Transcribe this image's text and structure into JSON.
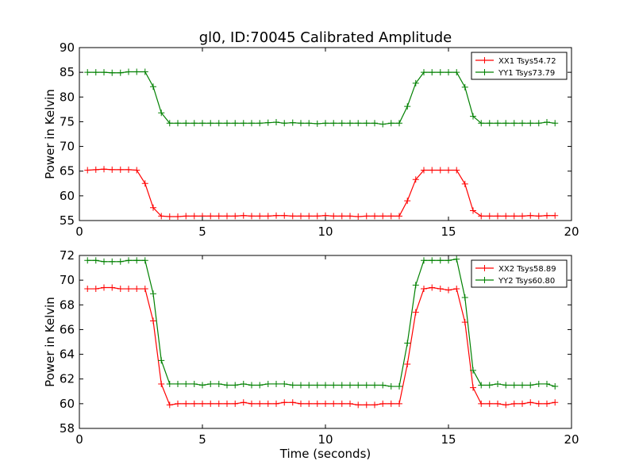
{
  "figure_title": "gl0, ID:70045 Calibrated Amplitude",
  "chart_data": [
    {
      "type": "line",
      "title": "gl0, ID:70045 Calibrated Amplitude",
      "xlabel": "",
      "ylabel": "Power in Kelvin",
      "xlim": [
        0,
        20
      ],
      "ylim": [
        55,
        90
      ],
      "xticks": [
        0,
        5,
        10,
        15,
        20
      ],
      "yticks": [
        55,
        60,
        65,
        70,
        75,
        80,
        85,
        90
      ],
      "grid": false,
      "legend_position": "top-right",
      "x": [
        0.33,
        0.67,
        1.0,
        1.33,
        1.67,
        2.0,
        2.33,
        2.67,
        3.0,
        3.33,
        3.67,
        4.0,
        4.33,
        4.67,
        5.0,
        5.33,
        5.67,
        6.0,
        6.33,
        6.67,
        7.0,
        7.33,
        7.67,
        8.0,
        8.33,
        8.67,
        9.0,
        9.33,
        9.67,
        10.0,
        10.33,
        10.67,
        11.0,
        11.33,
        11.67,
        12.0,
        12.33,
        12.67,
        13.0,
        13.33,
        13.67,
        14.0,
        14.33,
        14.67,
        15.0,
        15.33,
        15.67,
        16.0,
        16.33,
        16.67,
        17.0,
        17.33,
        17.67,
        18.0,
        18.33,
        18.67,
        19.0,
        19.33
      ],
      "series": [
        {
          "name": "XX1 Tsys54.72",
          "color": "#ff0000",
          "values": [
            65.2,
            65.3,
            65.4,
            65.3,
            65.3,
            65.3,
            65.2,
            62.5,
            57.6,
            55.9,
            55.8,
            55.8,
            55.9,
            55.9,
            55.9,
            55.9,
            55.9,
            55.9,
            55.9,
            56.0,
            55.9,
            55.9,
            55.9,
            56.0,
            56.0,
            55.9,
            55.9,
            55.9,
            55.9,
            56.0,
            55.9,
            55.9,
            55.9,
            55.8,
            55.9,
            55.9,
            55.9,
            55.9,
            55.9,
            59.0,
            63.3,
            65.2,
            65.2,
            65.2,
            65.2,
            65.2,
            62.4,
            57.0,
            55.9,
            55.9,
            55.9,
            55.9,
            55.9,
            55.9,
            56.0,
            55.9,
            56.0,
            56.0
          ]
        },
        {
          "name": "YY1 Tsys73.79",
          "color": "#008000",
          "values": [
            85.0,
            85.0,
            85.0,
            84.9,
            84.9,
            85.1,
            85.1,
            85.1,
            82.1,
            76.8,
            74.7,
            74.7,
            74.7,
            74.7,
            74.7,
            74.7,
            74.7,
            74.7,
            74.7,
            74.7,
            74.7,
            74.7,
            74.8,
            74.9,
            74.7,
            74.8,
            74.7,
            74.7,
            74.6,
            74.7,
            74.7,
            74.7,
            74.7,
            74.7,
            74.7,
            74.7,
            74.5,
            74.7,
            74.7,
            78.1,
            82.8,
            85.0,
            85.0,
            85.0,
            85.0,
            85.0,
            82.0,
            76.1,
            74.7,
            74.7,
            74.7,
            74.7,
            74.7,
            74.7,
            74.7,
            74.7,
            74.9,
            74.7
          ]
        }
      ]
    },
    {
      "type": "line",
      "title": "",
      "xlabel": "Time (seconds)",
      "ylabel": "Power in Kelvin",
      "xlim": [
        0,
        20
      ],
      "ylim": [
        58,
        72
      ],
      "xticks": [
        0,
        5,
        10,
        15,
        20
      ],
      "yticks": [
        58,
        60,
        62,
        64,
        66,
        68,
        70,
        72
      ],
      "grid": false,
      "legend_position": "top-right",
      "x": [
        0.33,
        0.67,
        1.0,
        1.33,
        1.67,
        2.0,
        2.33,
        2.67,
        3.0,
        3.33,
        3.67,
        4.0,
        4.33,
        4.67,
        5.0,
        5.33,
        5.67,
        6.0,
        6.33,
        6.67,
        7.0,
        7.33,
        7.67,
        8.0,
        8.33,
        8.67,
        9.0,
        9.33,
        9.67,
        10.0,
        10.33,
        10.67,
        11.0,
        11.33,
        11.67,
        12.0,
        12.33,
        12.67,
        13.0,
        13.33,
        13.67,
        14.0,
        14.33,
        14.67,
        15.0,
        15.33,
        15.67,
        16.0,
        16.33,
        16.67,
        17.0,
        17.33,
        17.67,
        18.0,
        18.33,
        18.67,
        19.0,
        19.33
      ],
      "series": [
        {
          "name": "XX2 Tsys58.89",
          "color": "#ff0000",
          "values": [
            69.3,
            69.3,
            69.4,
            69.4,
            69.3,
            69.3,
            69.3,
            69.3,
            66.7,
            61.6,
            59.9,
            60.0,
            60.0,
            60.0,
            60.0,
            60.0,
            60.0,
            60.0,
            60.0,
            60.1,
            60.0,
            60.0,
            60.0,
            60.0,
            60.1,
            60.1,
            60.0,
            60.0,
            60.0,
            60.0,
            60.0,
            60.0,
            60.0,
            59.9,
            59.9,
            59.9,
            60.0,
            60.0,
            60.0,
            63.2,
            67.4,
            69.3,
            69.4,
            69.3,
            69.2,
            69.3,
            66.6,
            61.3,
            60.0,
            60.0,
            60.0,
            59.9,
            60.0,
            60.0,
            60.1,
            60.0,
            60.0,
            60.1
          ]
        },
        {
          "name": "YY2 Tsys60.80",
          "color": "#008000",
          "values": [
            71.6,
            71.6,
            71.5,
            71.5,
            71.5,
            71.6,
            71.6,
            71.6,
            68.9,
            63.5,
            61.6,
            61.6,
            61.6,
            61.6,
            61.5,
            61.6,
            61.6,
            61.5,
            61.5,
            61.6,
            61.5,
            61.5,
            61.6,
            61.6,
            61.6,
            61.5,
            61.5,
            61.5,
            61.5,
            61.5,
            61.5,
            61.5,
            61.5,
            61.5,
            61.5,
            61.5,
            61.5,
            61.4,
            61.4,
            64.9,
            69.6,
            71.6,
            71.6,
            71.6,
            71.6,
            71.7,
            68.6,
            62.7,
            61.5,
            61.5,
            61.6,
            61.5,
            61.5,
            61.5,
            61.5,
            61.6,
            61.6,
            61.4
          ]
        }
      ]
    }
  ]
}
